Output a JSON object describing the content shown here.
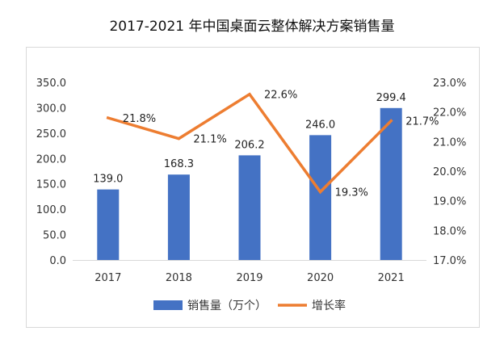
{
  "chart_data": {
    "type": "bar+line",
    "title": "2017-2021 年中国桌面云整体解决方案销售量",
    "categories": [
      "2017",
      "2018",
      "2019",
      "2020",
      "2021"
    ],
    "series": [
      {
        "name": "销售量（万个）",
        "type": "bar",
        "axis": "left",
        "values": [
          139.0,
          168.3,
          206.2,
          246.0,
          299.4
        ],
        "labels": [
          "139.0",
          "168.3",
          "206.2",
          "246.0",
          "299.4"
        ],
        "color": "#4472C4"
      },
      {
        "name": "增长率",
        "type": "line",
        "axis": "right",
        "values": [
          21.8,
          21.1,
          22.6,
          19.3,
          21.7
        ],
        "labels": [
          "21.8%",
          "21.1%",
          "22.6%",
          "19.3%",
          "21.7%"
        ],
        "color": "#ED7D31"
      }
    ],
    "y_left": {
      "ylim": [
        0,
        350
      ],
      "ticks": [
        "0.0",
        "50.0",
        "100.0",
        "150.0",
        "200.0",
        "250.0",
        "300.0",
        "350.0"
      ]
    },
    "y_right": {
      "ylim": [
        17.0,
        23.0
      ],
      "ticks": [
        "17.0%",
        "18.0%",
        "19.0%",
        "20.0%",
        "21.0%",
        "22.0%",
        "23.0%"
      ]
    },
    "grid": false,
    "legend_position": "bottom"
  }
}
